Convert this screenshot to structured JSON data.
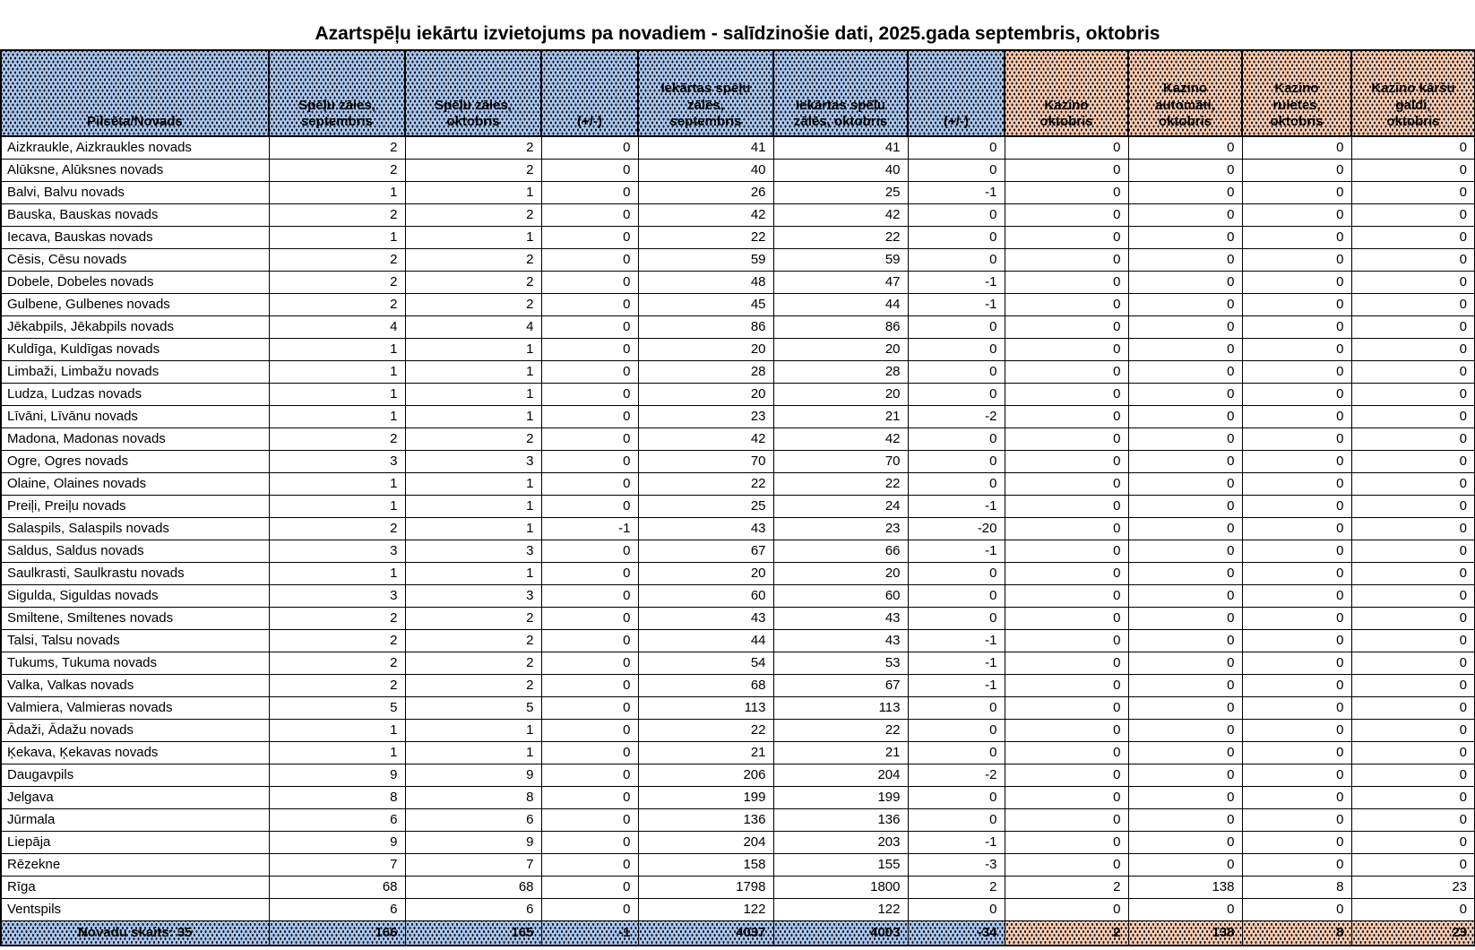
{
  "title": "Azartspēļu iekārtu izvietojums pa novadiem - salīdzinošie dati, 2025.gada septembris, oktobris",
  "colors": {
    "header_blue": "#a9c6ec",
    "header_orange": "#f7cbae",
    "pattern_dot": "#10101c",
    "border": "#000000",
    "background": "#ffffff"
  },
  "table": {
    "columns": [
      {
        "label": "Pilsēta/Novads",
        "fill": "blue"
      },
      {
        "label": "Spēļu zāles,\nseptembris",
        "fill": "blue"
      },
      {
        "label": "Spēļu zāles,\noktobris",
        "fill": "blue"
      },
      {
        "label": "(+/-)",
        "fill": "blue"
      },
      {
        "label": "Iekārtas spēļu\nzālēs,\nseptembris",
        "fill": "blue"
      },
      {
        "label": "Iekārtas spēļu\nzālēs, oktobris",
        "fill": "blue"
      },
      {
        "label": "(+/-)",
        "fill": "blue"
      },
      {
        "label": "Kazino\noktobris",
        "fill": "orange"
      },
      {
        "label": "Kazino\nautomāti,\noktobris",
        "fill": "orange"
      },
      {
        "label": "Kazino\nruletes,\noktobris",
        "fill": "orange"
      },
      {
        "label": "Kazino kāršu\ngaldi,\noktobris",
        "fill": "orange"
      }
    ],
    "rows": [
      {
        "name": "Aizkraukle, Aizkraukles novads",
        "values": [
          2,
          2,
          0,
          41,
          41,
          0,
          0,
          0,
          0,
          0
        ]
      },
      {
        "name": "Alūksne, Alūksnes novads",
        "values": [
          2,
          2,
          0,
          40,
          40,
          0,
          0,
          0,
          0,
          0
        ]
      },
      {
        "name": "Balvi, Balvu novads",
        "values": [
          1,
          1,
          0,
          26,
          25,
          -1,
          0,
          0,
          0,
          0
        ]
      },
      {
        "name": "Bauska, Bauskas novads",
        "values": [
          2,
          2,
          0,
          42,
          42,
          0,
          0,
          0,
          0,
          0
        ]
      },
      {
        "name": "Iecava, Bauskas novads",
        "values": [
          1,
          1,
          0,
          22,
          22,
          0,
          0,
          0,
          0,
          0
        ]
      },
      {
        "name": "Cēsis, Cēsu novads",
        "values": [
          2,
          2,
          0,
          59,
          59,
          0,
          0,
          0,
          0,
          0
        ]
      },
      {
        "name": "Dobele, Dobeles novads",
        "values": [
          2,
          2,
          0,
          48,
          47,
          -1,
          0,
          0,
          0,
          0
        ]
      },
      {
        "name": "Gulbene, Gulbenes novads",
        "values": [
          2,
          2,
          0,
          45,
          44,
          -1,
          0,
          0,
          0,
          0
        ]
      },
      {
        "name": "Jēkabpils, Jēkabpils novads",
        "values": [
          4,
          4,
          0,
          86,
          86,
          0,
          0,
          0,
          0,
          0
        ]
      },
      {
        "name": "Kuldīga, Kuldīgas novads",
        "values": [
          1,
          1,
          0,
          20,
          20,
          0,
          0,
          0,
          0,
          0
        ]
      },
      {
        "name": "Limbaži, Limbažu novads",
        "values": [
          1,
          1,
          0,
          28,
          28,
          0,
          0,
          0,
          0,
          0
        ]
      },
      {
        "name": "Ludza, Ludzas novads",
        "values": [
          1,
          1,
          0,
          20,
          20,
          0,
          0,
          0,
          0,
          0
        ]
      },
      {
        "name": "Līvāni, Līvānu novads",
        "values": [
          1,
          1,
          0,
          23,
          21,
          -2,
          0,
          0,
          0,
          0
        ]
      },
      {
        "name": "Madona, Madonas novads",
        "values": [
          2,
          2,
          0,
          42,
          42,
          0,
          0,
          0,
          0,
          0
        ]
      },
      {
        "name": "Ogre, Ogres novads",
        "values": [
          3,
          3,
          0,
          70,
          70,
          0,
          0,
          0,
          0,
          0
        ]
      },
      {
        "name": "Olaine, Olaines novads",
        "values": [
          1,
          1,
          0,
          22,
          22,
          0,
          0,
          0,
          0,
          0
        ]
      },
      {
        "name": "Preiļi, Preiļu novads",
        "values": [
          1,
          1,
          0,
          25,
          24,
          -1,
          0,
          0,
          0,
          0
        ]
      },
      {
        "name": "Salaspils, Salaspils novads",
        "values": [
          2,
          1,
          -1,
          43,
          23,
          -20,
          0,
          0,
          0,
          0
        ]
      },
      {
        "name": "Saldus, Saldus novads",
        "values": [
          3,
          3,
          0,
          67,
          66,
          -1,
          0,
          0,
          0,
          0
        ]
      },
      {
        "name": "Saulkrasti, Saulkrastu novads",
        "values": [
          1,
          1,
          0,
          20,
          20,
          0,
          0,
          0,
          0,
          0
        ]
      },
      {
        "name": "Sigulda, Siguldas novads",
        "values": [
          3,
          3,
          0,
          60,
          60,
          0,
          0,
          0,
          0,
          0
        ]
      },
      {
        "name": "Smiltene, Smiltenes novads",
        "values": [
          2,
          2,
          0,
          43,
          43,
          0,
          0,
          0,
          0,
          0
        ]
      },
      {
        "name": "Talsi, Talsu novads",
        "values": [
          2,
          2,
          0,
          44,
          43,
          -1,
          0,
          0,
          0,
          0
        ]
      },
      {
        "name": "Tukums, Tukuma novads",
        "values": [
          2,
          2,
          0,
          54,
          53,
          -1,
          0,
          0,
          0,
          0
        ]
      },
      {
        "name": "Valka, Valkas novads",
        "values": [
          2,
          2,
          0,
          68,
          67,
          -1,
          0,
          0,
          0,
          0
        ]
      },
      {
        "name": "Valmiera, Valmieras novads",
        "values": [
          5,
          5,
          0,
          113,
          113,
          0,
          0,
          0,
          0,
          0
        ]
      },
      {
        "name": "Ādaži, Ādažu novads",
        "values": [
          1,
          1,
          0,
          22,
          22,
          0,
          0,
          0,
          0,
          0
        ]
      },
      {
        "name": "Ķekava, Ķekavas novads",
        "values": [
          1,
          1,
          0,
          21,
          21,
          0,
          0,
          0,
          0,
          0
        ]
      },
      {
        "name": "Daugavpils",
        "values": [
          9,
          9,
          0,
          206,
          204,
          -2,
          0,
          0,
          0,
          0
        ]
      },
      {
        "name": "Jelgava",
        "values": [
          8,
          8,
          0,
          199,
          199,
          0,
          0,
          0,
          0,
          0
        ]
      },
      {
        "name": "Jūrmala",
        "values": [
          6,
          6,
          0,
          136,
          136,
          0,
          0,
          0,
          0,
          0
        ]
      },
      {
        "name": "Liepāja",
        "values": [
          9,
          9,
          0,
          204,
          203,
          -1,
          0,
          0,
          0,
          0
        ]
      },
      {
        "name": "Rēzekne",
        "values": [
          7,
          7,
          0,
          158,
          155,
          -3,
          0,
          0,
          0,
          0
        ]
      },
      {
        "name": "Rīga",
        "values": [
          68,
          68,
          0,
          1798,
          1800,
          2,
          2,
          138,
          8,
          23
        ]
      },
      {
        "name": "Ventspils",
        "values": [
          6,
          6,
          0,
          122,
          122,
          0,
          0,
          0,
          0,
          0
        ]
      }
    ],
    "footer": {
      "label": "Novadu skaits: 35",
      "values": [
        166,
        165,
        -1,
        4037,
        4003,
        -34,
        2,
        138,
        8,
        23
      ]
    }
  }
}
